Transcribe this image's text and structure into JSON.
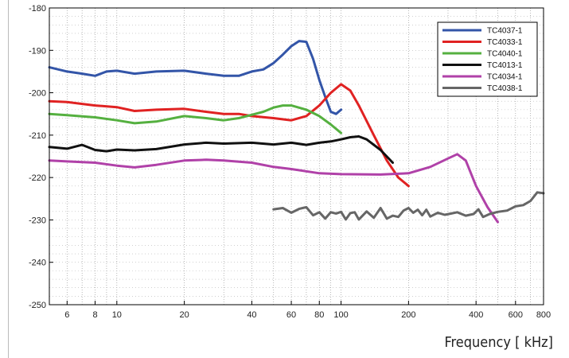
{
  "chart_data": {
    "type": "line",
    "xlabel": "Frequency [ kHz]",
    "x_scale": "log",
    "xlim": [
      5,
      800
    ],
    "ylim": [
      -250,
      -180
    ],
    "x_ticks": [
      6,
      8,
      10,
      20,
      40,
      60,
      80,
      100,
      200,
      400,
      600,
      800
    ],
    "y_ticks": [
      -180,
      -190,
      -200,
      -210,
      -220,
      -230,
      -240,
      -250
    ],
    "grid": true,
    "legend_position": "top-right",
    "series": [
      {
        "name": "TC4037-1",
        "color": "#3355a8",
        "x": [
          5,
          6,
          7,
          8,
          9,
          10,
          12,
          15,
          20,
          25,
          30,
          35,
          40,
          45,
          50,
          55,
          60,
          65,
          70,
          75,
          80,
          85,
          90,
          95,
          100
        ],
        "y": [
          -194,
          -195,
          -195.5,
          -196,
          -195,
          -194.8,
          -195.5,
          -195,
          -194.8,
          -195.5,
          -196,
          -196,
          -195,
          -194.5,
          -193,
          -191,
          -189,
          -187.8,
          -188,
          -192,
          -197,
          -201,
          -204.5,
          -205,
          -204
        ]
      },
      {
        "name": "TC4033-1",
        "color": "#e02222",
        "x": [
          5,
          6,
          8,
          10,
          12,
          15,
          20,
          25,
          30,
          35,
          40,
          50,
          60,
          70,
          80,
          90,
          100,
          110,
          120,
          140,
          160,
          180,
          200
        ],
        "y": [
          -202,
          -202.2,
          -203,
          -203.4,
          -204.3,
          -204,
          -203.8,
          -204.5,
          -205,
          -205,
          -205.5,
          -206,
          -206.5,
          -205.5,
          -203,
          -200,
          -198,
          -199.5,
          -203,
          -210,
          -216,
          -220,
          -222
        ]
      },
      {
        "name": "TC4040-1",
        "color": "#55b040",
        "x": [
          5,
          6,
          8,
          10,
          12,
          15,
          20,
          25,
          30,
          35,
          40,
          45,
          50,
          55,
          60,
          70,
          80,
          90,
          100
        ],
        "y": [
          -205,
          -205.3,
          -205.8,
          -206.5,
          -207.2,
          -206.8,
          -205.5,
          -206,
          -206.5,
          -206,
          -205.2,
          -204.5,
          -203.5,
          -203,
          -203,
          -204,
          -205.5,
          -207.5,
          -209.5
        ]
      },
      {
        "name": "TC4013-1",
        "color": "#111111",
        "x": [
          5,
          6,
          7,
          8,
          9,
          10,
          12,
          15,
          20,
          25,
          30,
          40,
          50,
          60,
          70,
          80,
          90,
          100,
          110,
          120,
          130,
          150,
          170
        ],
        "y": [
          -212.8,
          -213.2,
          -212.3,
          -213.5,
          -213.8,
          -213.4,
          -213.6,
          -213.3,
          -212.2,
          -211.8,
          -212,
          -211.8,
          -212.2,
          -211.8,
          -212.3,
          -211.8,
          -211.5,
          -211,
          -210.5,
          -210.3,
          -211,
          -213.5,
          -216.5
        ]
      },
      {
        "name": "TC4034-1",
        "color": "#b041a8",
        "x": [
          5,
          6,
          8,
          10,
          12,
          15,
          20,
          25,
          30,
          40,
          50,
          60,
          80,
          100,
          150,
          200,
          250,
          300,
          330,
          360,
          400,
          450,
          500
        ],
        "y": [
          -216,
          -216.2,
          -216.5,
          -217.2,
          -217.6,
          -217,
          -216,
          -215.8,
          -216,
          -216.5,
          -217.5,
          -218,
          -219,
          -219.2,
          -219.3,
          -219,
          -217.5,
          -215.5,
          -214.5,
          -216,
          -222,
          -227,
          -230.5
        ]
      },
      {
        "name": "TC4038-1",
        "color": "#666666",
        "x": [
          50,
          55,
          60,
          65,
          70,
          75,
          80,
          85,
          90,
          95,
          100,
          105,
          110,
          115,
          120,
          130,
          140,
          150,
          160,
          170,
          180,
          190,
          200,
          210,
          220,
          230,
          240,
          250,
          270,
          290,
          310,
          330,
          360,
          390,
          410,
          430,
          460,
          500,
          550,
          600,
          650,
          700,
          750,
          800
        ],
        "y": [
          -227.5,
          -227.2,
          -228.3,
          -227.4,
          -227,
          -228.9,
          -228.2,
          -229.7,
          -228.2,
          -228.5,
          -228.1,
          -229.9,
          -228.4,
          -228.2,
          -229.9,
          -228,
          -229.5,
          -227.2,
          -229.7,
          -229,
          -229.3,
          -227.8,
          -227.2,
          -228.3,
          -227.6,
          -228.9,
          -227.6,
          -229.2,
          -228.3,
          -228.8,
          -228.5,
          -228.2,
          -229,
          -228.6,
          -227.5,
          -229.3,
          -228.6,
          -228.1,
          -227.8,
          -226.8,
          -226.5,
          -225.5,
          -223.5,
          -223.7
        ]
      }
    ]
  }
}
